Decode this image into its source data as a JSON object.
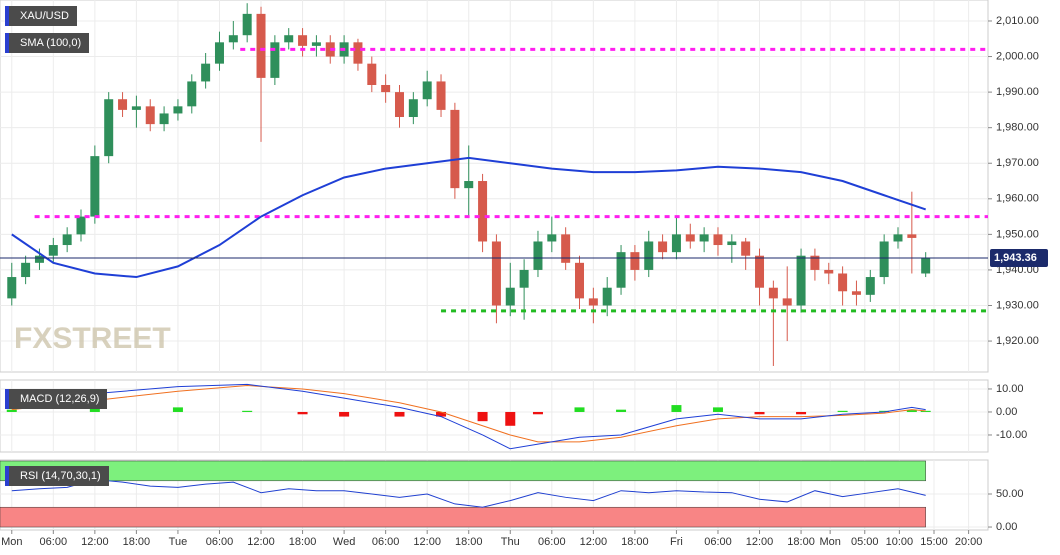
{
  "chart_data": [
    {
      "type": "candlestick",
      "title": "XAU/USD",
      "indicator": "SMA (100,0)",
      "watermark": "FXSTREET",
      "x": [
        0,
        2,
        4,
        6,
        8,
        10,
        12,
        14,
        16,
        18,
        20,
        22,
        24,
        26,
        28,
        30,
        32,
        34,
        36,
        38,
        40,
        42,
        44,
        46,
        48,
        50,
        52,
        54,
        56,
        58,
        60,
        62,
        64,
        66,
        68,
        70,
        72,
        74,
        76,
        78,
        80,
        82,
        84,
        86,
        88,
        90,
        92,
        94,
        96,
        98,
        100,
        102,
        104,
        106,
        108,
        110,
        112,
        114,
        116,
        118,
        120,
        122,
        124,
        126,
        128,
        130,
        132
      ],
      "open": [
        1932,
        1938,
        1942,
        1944,
        1947,
        1950,
        1955,
        1972,
        1988,
        1985,
        1986,
        1981,
        1984,
        1986,
        1993,
        1998,
        2004,
        2006,
        2012,
        1994,
        2004,
        2006,
        2003,
        2004,
        2000,
        2004,
        1998,
        1992,
        1990,
        1983,
        1988,
        1993,
        1985,
        1963,
        1965,
        1948,
        1930,
        1935,
        1940,
        1948,
        1950,
        1942,
        1932,
        1930,
        1935,
        1945,
        1940,
        1948,
        1945,
        1950,
        1948,
        1950,
        1947,
        1948,
        1944,
        1935,
        1932,
        1930,
        1944,
        1940,
        1939,
        1934,
        1933,
        1938,
        1948,
        1950,
        1939
      ],
      "high": [
        1942,
        1944,
        1946,
        1949,
        1952,
        1957,
        1975,
        1990,
        1990,
        1989,
        1988,
        1986,
        1988,
        1995,
        2001,
        2007,
        2010,
        2015,
        2014,
        2006,
        2008,
        2008,
        2006,
        2006,
        2006,
        2005,
        2000,
        1995,
        1992,
        1990,
        1996,
        1995,
        1987,
        1975,
        1967,
        1950,
        1942,
        1943,
        1951,
        1955,
        1952,
        1944,
        1935,
        1938,
        1947,
        1947,
        1951,
        1950,
        1955,
        1953,
        1952,
        1952,
        1950,
        1949,
        1946,
        1937,
        1941,
        1946,
        1946,
        1942,
        1941,
        1937,
        1940,
        1950,
        1952,
        1962,
        1945
      ],
      "low": [
        1930,
        1936,
        1940,
        1942,
        1945,
        1948,
        1953,
        1970,
        1983,
        1980,
        1979,
        1979,
        1982,
        1984,
        1991,
        1996,
        2002,
        2004,
        1976,
        1992,
        2002,
        2000,
        2000,
        1998,
        1998,
        1996,
        1990,
        1987,
        1980,
        1981,
        1986,
        1983,
        1960,
        1955,
        1945,
        1925,
        1927,
        1926,
        1938,
        1945,
        1940,
        1929,
        1925,
        1927,
        1933,
        1937,
        1938,
        1943,
        1943,
        1946,
        1945,
        1944,
        1942,
        1940,
        1930,
        1913,
        1920,
        1928,
        1937,
        1936,
        1930,
        1930,
        1931,
        1936,
        1946,
        1939,
        1938
      ],
      "close": [
        1938,
        1942,
        1944,
        1947,
        1950,
        1955,
        1972,
        1988,
        1985,
        1986,
        1981,
        1984,
        1986,
        1993,
        1998,
        2004,
        2006,
        2012,
        1994,
        2004,
        2006,
        2003,
        2004,
        2000,
        2004,
        1998,
        1992,
        1990,
        1983,
        1988,
        1993,
        1985,
        1963,
        1965,
        1948,
        1930,
        1935,
        1940,
        1948,
        1950,
        1942,
        1932,
        1930,
        1935,
        1945,
        1940,
        1948,
        1945,
        1950,
        1948,
        1950,
        1947,
        1948,
        1944,
        1935,
        1932,
        1930,
        1944,
        1940,
        1939,
        1934,
        1933,
        1938,
        1948,
        1950,
        1949,
        1943.36
      ],
      "up_color": "#2f8f5b",
      "down_color": "#d65a4c",
      "sma": {
        "color": "#1f3fd6",
        "x": [
          0,
          6,
          12,
          18,
          24,
          30,
          36,
          42,
          48,
          54,
          60,
          66,
          72,
          78,
          84,
          90,
          96,
          102,
          108,
          114,
          120,
          126,
          132
        ],
        "values": [
          1950,
          1942,
          1939,
          1938,
          1941,
          1947,
          1955,
          1961,
          1966,
          1968.5,
          1970,
          1971.5,
          1970,
          1968.5,
          1967.5,
          1967.5,
          1968,
          1969,
          1968.5,
          1967.5,
          1965,
          1961,
          1957
        ]
      },
      "levels": [
        {
          "value": 2002,
          "start": 33,
          "color": "#ff1ef0"
        },
        {
          "value": 1955,
          "start": 3.3,
          "color": "#ff1ef0"
        },
        {
          "value": 1928.5,
          "start": 62,
          "color": "#22bb22"
        }
      ],
      "last_price": {
        "value": 1943.36,
        "label": "1,943.36"
      },
      "last_color": "#1b2a6b",
      "xlim": [
        -1.7,
        141
      ],
      "ylim": [
        1911.3,
        2015.9
      ],
      "yticks": [
        {
          "value": 1920,
          "label": "1,920.00"
        },
        {
          "value": 1930,
          "label": "1,930.00"
        },
        {
          "value": 1940,
          "label": "1,940.00"
        },
        {
          "value": 1950,
          "label": "1,950.00"
        },
        {
          "value": 1960,
          "label": "1,960.00"
        },
        {
          "value": 1970,
          "label": "1,970.00"
        },
        {
          "value": 1980,
          "label": "1,980.00"
        },
        {
          "value": 1990,
          "label": "1,990.00"
        },
        {
          "value": 2000,
          "label": "2,000.00"
        },
        {
          "value": 2010,
          "label": "2,010.00"
        }
      ],
      "grid": true
    },
    {
      "type": "macd",
      "title": "MACD (12,26,9)",
      "x": [
        0,
        12,
        24,
        34,
        42,
        48,
        56,
        62,
        68,
        72,
        76,
        82,
        88,
        96,
        102,
        108,
        114,
        120,
        126,
        130,
        132
      ],
      "macd_line": {
        "color": "#1f3fd6",
        "values": [
          2,
          8,
          11,
          12,
          9,
          6,
          2,
          -2,
          -10,
          -16,
          -14,
          -11,
          -10,
          -3,
          -1,
          -3,
          -3,
          -1,
          0,
          2,
          1
        ]
      },
      "signal_line": {
        "color": "#f07020",
        "values": [
          1,
          5,
          9,
          11.5,
          10,
          8,
          4,
          0,
          -6,
          -10,
          -13,
          -13,
          -11,
          -6,
          -3,
          -2,
          -2,
          -1.5,
          -0.5,
          1,
          0.5
        ]
      },
      "histogram": {
        "up_color": "#22dd22",
        "down_color": "#ee1111",
        "values": [
          1,
          3,
          2,
          0.5,
          -1,
          -2,
          -2,
          -2,
          -4,
          -6,
          -1,
          2,
          1,
          3,
          2,
          -1,
          -1,
          0.5,
          0.5,
          0.8,
          0.5
        ]
      },
      "xlim": [
        -1.7,
        141
      ],
      "ylim": [
        -17.4,
        13.9
      ],
      "yticks": [
        {
          "value": -10,
          "label": "-10.00"
        },
        {
          "value": 0,
          "label": "0.00"
        },
        {
          "value": 10,
          "label": "10.00"
        }
      ],
      "grid": true
    },
    {
      "type": "rsi",
      "title": "RSI (14,70,30,1)",
      "x": [
        0,
        4,
        8,
        12,
        16,
        20,
        24,
        28,
        32,
        36,
        40,
        44,
        48,
        52,
        56,
        60,
        64,
        68,
        72,
        76,
        80,
        84,
        88,
        92,
        96,
        100,
        104,
        108,
        112,
        116,
        120,
        124,
        128,
        132
      ],
      "values": [
        55,
        58,
        60,
        72,
        68,
        62,
        60,
        65,
        68,
        52,
        58,
        55,
        55,
        50,
        45,
        50,
        35,
        30,
        40,
        52,
        45,
        40,
        55,
        52,
        55,
        53,
        52,
        42,
        38,
        55,
        46,
        52,
        58,
        48
      ],
      "color": "#2040d0",
      "overbought_band": [
        70,
        100
      ],
      "oversold_band": [
        0,
        30
      ],
      "over_color": "#7df07d",
      "under_color": "#f88585",
      "xlim": [
        -1.7,
        141
      ],
      "ylim": [
        -4.5,
        101.5
      ],
      "yticks": [
        {
          "value": 0,
          "label": "0.00"
        },
        {
          "value": 50,
          "label": "50.00"
        }
      ],
      "grid": true,
      "xticks": [
        {
          "value": 0,
          "label": "Mon"
        },
        {
          "value": 6,
          "label": "06:00"
        },
        {
          "value": 12,
          "label": "12:00"
        },
        {
          "value": 18,
          "label": "18:00"
        },
        {
          "value": 24,
          "label": "Tue"
        },
        {
          "value": 30,
          "label": "06:00"
        },
        {
          "value": 36,
          "label": "12:00"
        },
        {
          "value": 42,
          "label": "18:00"
        },
        {
          "value": 48,
          "label": "Wed"
        },
        {
          "value": 54,
          "label": "06:00"
        },
        {
          "value": 60,
          "label": "12:00"
        },
        {
          "value": 66,
          "label": "18:00"
        },
        {
          "value": 72,
          "label": "Thu"
        },
        {
          "value": 78,
          "label": "06:00"
        },
        {
          "value": 84,
          "label": "12:00"
        },
        {
          "value": 90,
          "label": "18:00"
        },
        {
          "value": 96,
          "label": "Fri"
        },
        {
          "value": 102,
          "label": "06:00"
        },
        {
          "value": 108,
          "label": "12:00"
        },
        {
          "value": 114,
          "label": "18:00"
        },
        {
          "value": 118.2,
          "label": "Mon"
        },
        {
          "value": 123.2,
          "label": "05:00"
        },
        {
          "value": 128.2,
          "label": "10:00"
        },
        {
          "value": 133.2,
          "label": "15:00"
        },
        {
          "value": 138.2,
          "label": "20:00"
        }
      ]
    }
  ]
}
